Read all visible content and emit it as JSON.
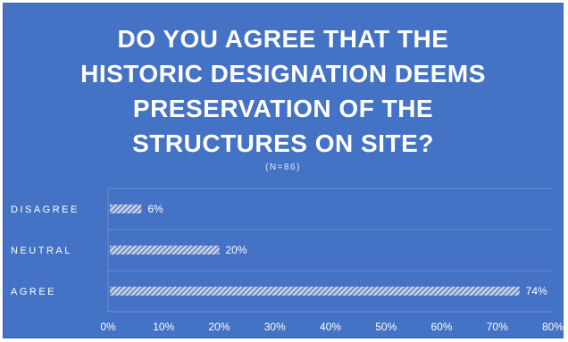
{
  "chart_data": {
    "type": "bar",
    "orientation": "horizontal",
    "title": "DO YOU AGREE THAT THE\nHISTORIC DESIGNATION DEEMS\nPRESERVATION OF THE\nSTRUCTURES ON SITE?",
    "subtitle": "(N=86)",
    "categories": [
      "DISAGREE",
      "NEUTRAL",
      "AGREE"
    ],
    "values": [
      6,
      20,
      74
    ],
    "value_labels": [
      "6%",
      "20%",
      "74%"
    ],
    "xlim": [
      0,
      80
    ],
    "xticks": [
      0,
      10,
      20,
      30,
      40,
      50,
      60,
      70,
      80
    ],
    "xtick_labels": [
      "0%",
      "10%",
      "20%",
      "30%",
      "40%",
      "50%",
      "60%",
      "70%",
      "80%"
    ],
    "grid": true,
    "legend": "none",
    "colors": {
      "background": "#4472c4",
      "bar_stripe": "#ffffff",
      "bar_fill": "#7d96c8",
      "grid": "#6a8fd0"
    }
  }
}
